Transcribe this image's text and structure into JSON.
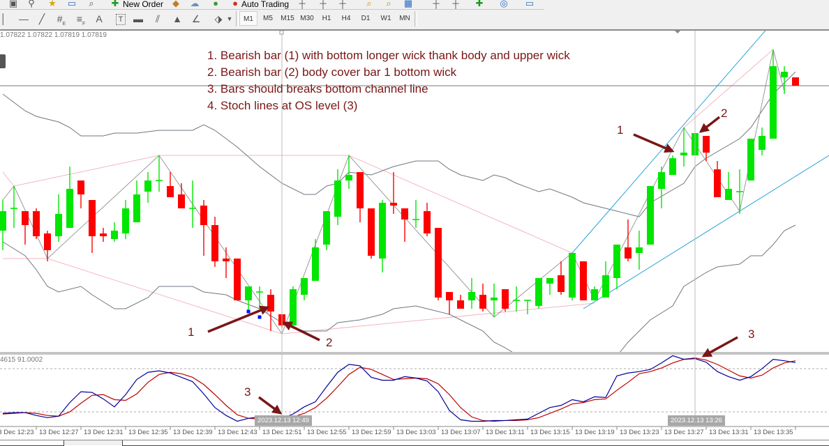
{
  "toolbar": {
    "new_order_label": "New Order",
    "auto_trading_label": "Auto Trading",
    "drawing_tools": [
      "vertical-line",
      "horizontal-line",
      "trendline",
      "equidistant-channel",
      "fibonacci",
      "text",
      "text-label",
      "rectangle",
      "parallel-lines",
      "triangle",
      "angle",
      "arrows"
    ],
    "tool_letters": {
      "equidistant": "E",
      "fibo": "F",
      "text": "A",
      "label": "T"
    },
    "timeframes": [
      "M1",
      "M5",
      "M15",
      "M30",
      "H1",
      "H4",
      "D1",
      "W1",
      "MN"
    ],
    "selected_timeframe": "M1"
  },
  "chart": {
    "ohlc_readout": "1.07822 1.07822 1.07819 1.07819",
    "stoch_readout": "4615 91.0002",
    "notes": [
      "1. Bearish bar (1) with bottom longer wick thank body and upper wick",
      "2. Bearish bar (2) body cover bar 1 bottom wick",
      "3. Bars should breaks bottom channel line",
      "4. Stoch lines at OS level (3)"
    ],
    "annotations": {
      "a1": "1",
      "a2": "2",
      "b1": "1",
      "b2": "2",
      "s1": "3",
      "s2": "3"
    },
    "time_labels": [
      "13 Dec 12:23",
      "13 Dec 12:27",
      "13 Dec 12:31",
      "13 Dec 12:35",
      "13 Dec 12:39",
      "13 Dec 12:43",
      "13 Dec 12:51",
      "13 Dec 12:55",
      "13 Dec 12:59",
      "13 Dec 13:03",
      "13 Dec 13:07",
      "13 Dec 13:11",
      "13 Dec 13:15",
      "13 Dec 13:19",
      "13 Dec 13:23",
      "13 Dec 13:27",
      "13 Dec 13:31",
      "13 Dec 13:35"
    ],
    "crosshair_labels": [
      "2023.12.13 12:49",
      "2023.12.13 13:26"
    ]
  },
  "chart_data": {
    "type": "candlestick",
    "symbol_timeframe": "M1",
    "first_time": "2023.12.13 12:24",
    "colors": {
      "bull": "#00e600",
      "bear": "#ff0000",
      "bands": "#6e7780",
      "zigzag": "#9a9a9a",
      "fractal_channel": "#f2b6c0",
      "trend_channel": "#2aa6d6",
      "stoch_main": "#00009c",
      "stoch_signal": "#c00000",
      "annotation": "#7a1616"
    },
    "candles_ohlc": [
      [
        1.07767,
        1.07778,
        1.0776,
        1.07774
      ],
      [
        1.07775,
        1.07783,
        1.07768,
        1.07775
      ],
      [
        1.07774,
        1.07774,
        1.07762,
        1.07769
      ],
      [
        1.07774,
        1.07775,
        1.07764,
        1.07765
      ],
      [
        1.07766,
        1.07767,
        1.07756,
        1.0776
      ],
      [
        1.07765,
        1.0778,
        1.07763,
        1.07773
      ],
      [
        1.07768,
        1.0779,
        1.07768,
        1.07782
      ],
      [
        1.07785,
        1.07785,
        1.07775,
        1.0778
      ],
      [
        1.07778,
        1.07778,
        1.07759,
        1.07765
      ],
      [
        1.07766,
        1.07768,
        1.07763,
        1.07765
      ],
      [
        1.07764,
        1.0777,
        1.07763,
        1.07767
      ],
      [
        1.07766,
        1.07778,
        1.07764,
        1.07775
      ],
      [
        1.0777,
        1.07785,
        1.0777,
        1.0778
      ],
      [
        1.07781,
        1.07788,
        1.07777,
        1.07785
      ],
      [
        1.07785,
        1.07794,
        1.07781,
        1.07785
      ],
      [
        1.07783,
        1.07788,
        1.07779,
        1.07779
      ],
      [
        1.0778,
        1.07784,
        1.07775,
        1.07775
      ],
      [
        1.07775,
        1.07785,
        1.07768,
        1.07775
      ],
      [
        1.07776,
        1.07778,
        1.07758,
        1.07769
      ],
      [
        1.07769,
        1.07772,
        1.07754,
        1.07756
      ],
      [
        1.07757,
        1.07761,
        1.0775,
        1.07756
      ],
      [
        1.07757,
        1.07757,
        1.07742,
        1.07742
      ],
      [
        1.07742,
        1.07747,
        1.07738,
        1.07747
      ],
      [
        1.07745,
        1.07747,
        1.07739,
        1.07745
      ],
      [
        1.07744,
        1.07746,
        1.07731,
        1.07738
      ],
      [
        1.07737,
        1.07737,
        1.07732,
        1.07733
      ],
      [
        1.07733,
        1.07747,
        1.07733,
        1.07746
      ],
      [
        1.07744,
        1.0775,
        1.07742,
        1.0775
      ],
      [
        1.07749,
        1.07764,
        1.07749,
        1.07761
      ],
      [
        1.07762,
        1.07774,
        1.0776,
        1.07774
      ],
      [
        1.07772,
        1.07789,
        1.07769,
        1.07785
      ],
      [
        1.07785,
        1.07794,
        1.07782,
        1.07787
      ],
      [
        1.07788,
        1.07788,
        1.0777,
        1.07775
      ],
      [
        1.07775,
        1.07775,
        1.07757,
        1.07758
      ],
      [
        1.07757,
        1.07778,
        1.07752,
        1.07777
      ],
      [
        1.07777,
        1.07788,
        1.07773,
        1.07776
      ],
      [
        1.07775,
        1.07775,
        1.07763,
        1.07771
      ],
      [
        1.07771,
        1.07778,
        1.07768,
        1.07771
      ],
      [
        1.07774,
        1.07777,
        1.07765,
        1.07766
      ],
      [
        1.07768,
        1.07768,
        1.07742,
        1.07743
      ],
      [
        1.07745,
        1.07745,
        1.07737,
        1.07742
      ],
      [
        1.07742,
        1.07744,
        1.07739,
        1.07739
      ],
      [
        1.07742,
        1.0775,
        1.07739,
        1.07745
      ],
      [
        1.07744,
        1.07748,
        1.07738,
        1.07739
      ],
      [
        1.07742,
        1.07748,
        1.07736,
        1.07743
      ],
      [
        1.07746,
        1.07746,
        1.07738,
        1.07739
      ],
      [
        1.07742,
        1.07747,
        1.07738,
        1.07742
      ],
      [
        1.07742,
        1.07742,
        1.07737,
        1.07742
      ],
      [
        1.0774,
        1.0775,
        1.07739,
        1.0775
      ],
      [
        1.07748,
        1.0775,
        1.07744,
        1.0775
      ],
      [
        1.07751,
        1.07756,
        1.07744,
        1.07745
      ],
      [
        1.07743,
        1.07759,
        1.07742,
        1.07759
      ],
      [
        1.07756,
        1.07756,
        1.07742,
        1.07742
      ],
      [
        1.07742,
        1.07747,
        1.07742,
        1.07746
      ],
      [
        1.07743,
        1.07756,
        1.07743,
        1.07751
      ],
      [
        1.0775,
        1.07762,
        1.07746,
        1.07762
      ],
      [
        1.07761,
        1.07771,
        1.07756,
        1.07757
      ],
      [
        1.07759,
        1.07767,
        1.07753,
        1.07761
      ],
      [
        1.07762,
        1.07783,
        1.07762,
        1.07783
      ],
      [
        1.07782,
        1.0779,
        1.07775,
        1.07788
      ],
      [
        1.07787,
        1.07794,
        1.07787,
        1.07793
      ],
      [
        1.07794,
        1.07804,
        1.0779,
        1.07795
      ],
      [
        1.07794,
        1.07802,
        1.07794,
        1.07802
      ],
      [
        1.07801,
        1.07801,
        1.07792,
        1.07795
      ],
      [
        1.07789,
        1.07792,
        1.07779,
        1.07779
      ],
      [
        1.07778,
        1.07788,
        1.07778,
        1.07782
      ],
      [
        1.07781,
        1.07789,
        1.07773,
        1.07781
      ],
      [
        1.07785,
        1.078,
        1.07785,
        1.078
      ],
      [
        1.07796,
        1.07804,
        1.07794,
        1.07801
      ],
      [
        1.078,
        1.07832,
        1.078,
        1.07826
      ],
      [
        1.07822,
        1.07826,
        1.07816,
        1.07824
      ],
      [
        1.07822,
        1.07822,
        1.07819,
        1.07819
      ]
    ],
    "upper_band": [
      [
        "12:24",
        1.07816
      ],
      [
        "12:25",
        1.07813
      ],
      [
        "12:26",
        1.0781
      ],
      [
        "12:27",
        1.07808
      ],
      [
        "12:29",
        1.07806
      ],
      [
        "12:30",
        1.07804
      ],
      [
        "12:31",
        1.07801
      ],
      [
        "12:33",
        1.07801
      ],
      [
        "12:34",
        1.07802
      ],
      [
        "12:36",
        1.07802
      ],
      [
        "12:38",
        1.07803
      ],
      [
        "12:41",
        1.07803
      ],
      [
        "12:42",
        1.07805
      ],
      [
        "12:43",
        1.07803
      ],
      [
        "12:45",
        1.07797
      ],
      [
        "12:47",
        1.0779
      ],
      [
        "12:49",
        1.07784
      ],
      [
        "12:51",
        1.0778
      ],
      [
        "12:52",
        1.0778
      ],
      [
        "12:53",
        1.07783
      ],
      [
        "12:54",
        1.07784
      ],
      [
        "12:55",
        1.07788
      ],
      [
        "12:57",
        1.07787
      ],
      [
        "12:59",
        1.0779
      ],
      [
        "13:01",
        1.07792
      ],
      [
        "13:03",
        1.07792
      ],
      [
        "13:04",
        1.07789
      ],
      [
        "13:05",
        1.07787
      ],
      [
        "13:06",
        1.07786
      ],
      [
        "13:07",
        1.07785
      ],
      [
        "13:08",
        1.07787
      ],
      [
        "13:09",
        1.07786
      ],
      [
        "13:10",
        1.07784
      ],
      [
        "13:12",
        1.07781
      ],
      [
        "13:13",
        1.07782
      ],
      [
        "13:15",
        1.07779
      ],
      [
        "13:16",
        1.07777
      ],
      [
        "13:18",
        1.07775
      ],
      [
        "13:19",
        1.07774
      ],
      [
        "13:21",
        1.07772
      ],
      [
        "13:22",
        1.07777
      ],
      [
        "13:25",
        1.07784
      ],
      [
        "13:26",
        1.0779
      ],
      [
        "13:27",
        1.07793
      ],
      [
        "13:30",
        1.078
      ],
      [
        "13:31",
        1.07804
      ],
      [
        "13:33",
        1.07816
      ],
      [
        "13:35",
        1.07824
      ]
    ],
    "lower_band": [
      [
        "12:24",
        1.07763
      ],
      [
        "12:26",
        1.07758
      ],
      [
        "12:27",
        1.07753
      ],
      [
        "12:28",
        1.07747
      ],
      [
        "12:29",
        1.07745
      ],
      [
        "12:31",
        1.07747
      ],
      [
        "12:32",
        1.07744
      ],
      [
        "12:34",
        1.07739
      ],
      [
        "12:35",
        1.07739
      ],
      [
        "12:37",
        1.07743
      ],
      [
        "12:38",
        1.07747
      ],
      [
        "12:39",
        1.07747
      ],
      [
        "12:41",
        1.07747
      ],
      [
        "12:42",
        1.07745
      ],
      [
        "12:44",
        1.07744
      ],
      [
        "12:45",
        1.07742
      ],
      [
        "12:47",
        1.07739
      ],
      [
        "12:49",
        1.07734
      ],
      [
        "12:50",
        1.07732
      ],
      [
        "12:51",
        1.07731
      ],
      [
        "12:53",
        1.07731
      ],
      [
        "12:54",
        1.07734
      ],
      [
        "12:56",
        1.07735
      ],
      [
        "12:58",
        1.07737
      ],
      [
        "12:59",
        1.07739
      ],
      [
        "13:01",
        1.0774
      ],
      [
        "13:02",
        1.07739
      ],
      [
        "13:04",
        1.07737
      ],
      [
        "13:05",
        1.07735
      ],
      [
        "13:07",
        1.07731
      ],
      [
        "13:08",
        1.07727
      ],
      [
        "13:09",
        1.07725
      ],
      [
        "13:11",
        1.0772
      ],
      [
        "13:19",
        1.07722
      ],
      [
        "13:20",
        1.07727
      ],
      [
        "13:22",
        1.07735
      ],
      [
        "13:24",
        1.0774
      ],
      [
        "13:25",
        1.07747
      ],
      [
        "13:27",
        1.07752
      ],
      [
        "13:28",
        1.07754
      ],
      [
        "13:30",
        1.07755
      ],
      [
        "13:31",
        1.07758
      ],
      [
        "13:32",
        1.07758
      ],
      [
        "13:33",
        1.07762
      ],
      [
        "13:34",
        1.07767
      ],
      [
        "13:35",
        1.07769
      ]
    ],
    "zigzag": [
      [
        "12:24",
        1.07778
      ],
      [
        "12:25",
        1.07783
      ],
      [
        "12:28",
        1.07757
      ],
      [
        "12:38",
        1.07794
      ],
      [
        "12:49",
        1.0773
      ],
      [
        "12:55",
        1.07794
      ],
      [
        "13:08",
        1.07736
      ],
      [
        "13:15",
        1.07759
      ],
      [
        "13:17",
        1.07742
      ],
      [
        "13:25",
        1.07804
      ],
      [
        "13:30",
        1.07774
      ],
      [
        "13:33",
        1.07832
      ],
      [
        "13:34",
        1.07817
      ]
    ],
    "fractal_channel_upper": [
      [
        "12:24",
        1.07788
      ],
      [
        "12:25",
        1.07783
      ],
      [
        "12:38",
        1.07794
      ],
      [
        "12:55",
        1.07794
      ],
      [
        "13:15",
        1.07759
      ]
    ],
    "fractal_channel_lower": [
      [
        "12:24",
        1.07757
      ],
      [
        "12:28",
        1.07757
      ],
      [
        "12:49",
        1.0773
      ],
      [
        "13:17",
        1.07741
      ]
    ],
    "fractal_channel_right": [
      [
        "13:25",
        1.07804
      ],
      [
        "13:33",
        1.07832
      ]
    ],
    "trend_channel_upper": [
      [
        "13:15",
        1.07759
      ],
      [
        "13:33",
        1.07842
      ]
    ],
    "trend_channel_lower": [
      [
        "13:16",
        1.07739
      ],
      [
        "13:38",
        1.07794
      ]
    ],
    "bid_line": 1.07819,
    "markers": [
      [
        "12:46",
        1.07738
      ],
      [
        "12:47",
        1.07736
      ]
    ],
    "crosshair_times": [
      "12:49",
      "13:26"
    ],
    "stochastic": {
      "levels": [
        20,
        80
      ],
      "range": [
        0,
        100
      ],
      "main": [
        18,
        19,
        19,
        15,
        12,
        14,
        33,
        48,
        47,
        38,
        27,
        44,
        65,
        75,
        77,
        74,
        68,
        62,
        45,
        26,
        15,
        7,
        11,
        13,
        12,
        11,
        17,
        27,
        34,
        55,
        75,
        86,
        84,
        68,
        64,
        64,
        69,
        67,
        63,
        48,
        22,
        9,
        7,
        7,
        8,
        8,
        9,
        10,
        18,
        26,
        29,
        37,
        34,
        41,
        40,
        70,
        74,
        76,
        79,
        88,
        98,
        93,
        94,
        89,
        76,
        69,
        64,
        69,
        80,
        93,
        91,
        88.4615
      ],
      "signal": [
        17,
        18,
        19,
        18,
        15,
        14,
        20,
        32,
        43,
        44,
        37,
        36,
        45,
        61,
        72,
        75,
        73,
        68,
        58,
        44,
        29,
        16,
        11,
        10,
        12,
        12,
        13,
        18,
        26,
        39,
        55,
        72,
        82,
        79,
        72,
        65,
        66,
        67,
        66,
        59,
        44,
        26,
        13,
        8,
        7,
        8,
        8,
        9,
        12,
        18,
        24,
        31,
        33,
        37,
        38,
        50,
        61,
        73,
        76,
        81,
        88,
        93,
        95,
        92,
        86,
        78,
        70,
        67,
        71,
        81,
        88,
        91.0002
      ]
    }
  }
}
